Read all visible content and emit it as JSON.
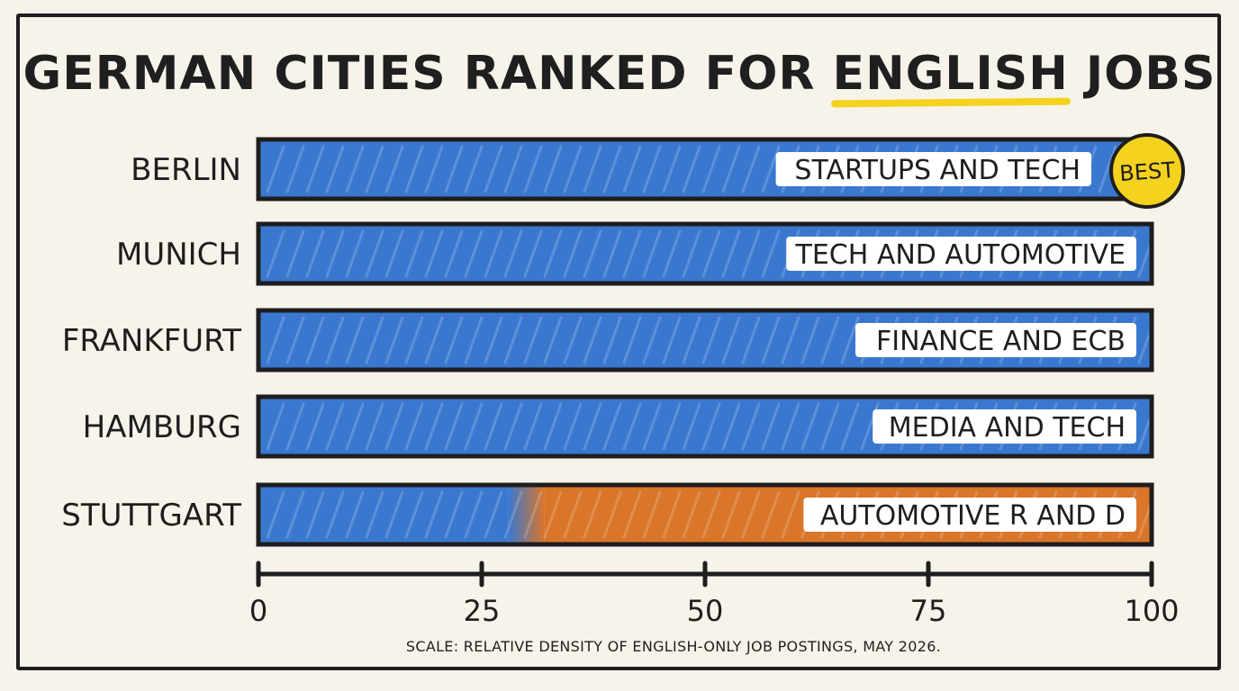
{
  "title_prefix": "GERMAN CITIES RANKED FOR ",
  "title_highlight": "ENGLISH",
  "title_suffix": " JOBS",
  "footnote": "SCALE: RELATIVE DENSITY OF ENGLISH-ONLY JOB POSTINGS, MAY 2026.",
  "colors": {
    "primary": "#3a78d0",
    "secondary": "#d9762a",
    "badge": "#f4d21e",
    "ink": "#1e1e1e",
    "background": "#f7f3ea"
  },
  "chart_data": {
    "type": "bar",
    "orientation": "horizontal",
    "title": "GERMAN CITIES RANKED FOR ENGLISH JOBS",
    "categories": [
      "BERLIN",
      "MUNICH",
      "FRANKFURT",
      "HAMBURG",
      "STUTTGART"
    ],
    "values": [
      100,
      100,
      100,
      100,
      100
    ],
    "secondary_from": [
      null,
      null,
      null,
      null,
      30
    ],
    "annotations": [
      "STARTUPS AND TECH",
      "TECH AND AUTOMOTIVE",
      "FINANCE AND ECB",
      "MEDIA AND TECH",
      "AUTOMOTIVE R AND D"
    ],
    "badge": {
      "category": "BERLIN",
      "text": "BEST"
    },
    "xlim": [
      0,
      100
    ],
    "xticks": [
      0,
      25,
      50,
      75,
      100
    ],
    "grid": false
  }
}
